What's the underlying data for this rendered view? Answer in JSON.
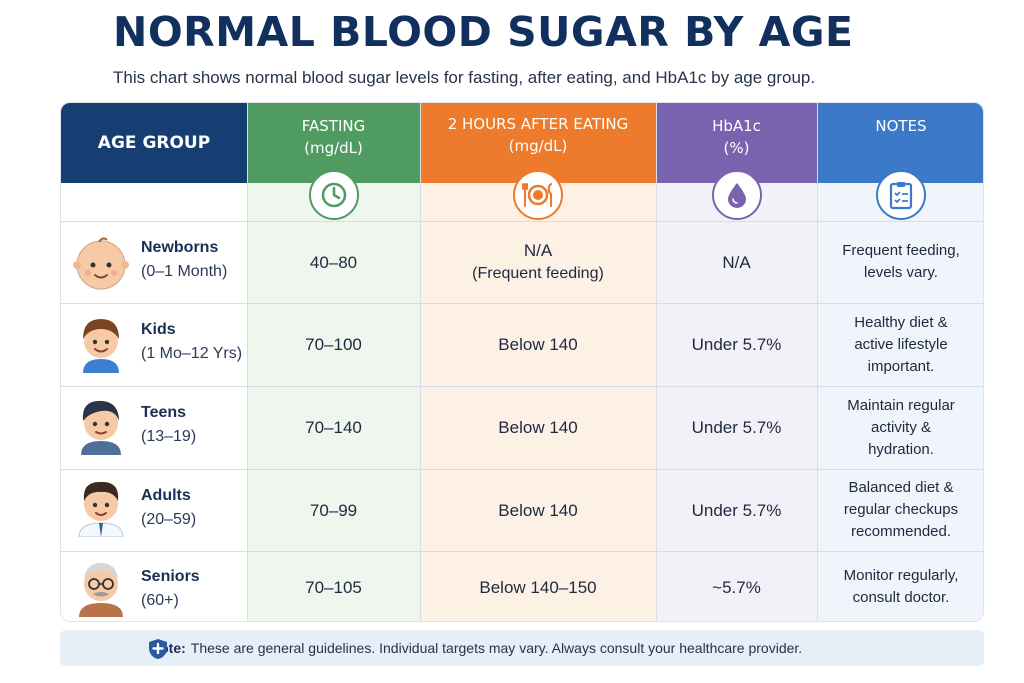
{
  "title": "NORMAL BLOOD SUGAR BY AGE",
  "subtitle": "This chart shows normal blood sugar levels for fasting, after eating, and HbA1c by age group.",
  "headers": {
    "age_group": "AGE GROUP",
    "fasting": "FASTING",
    "fasting_unit": "(mg/dL)",
    "after_eating": "2 HOURS AFTER EATING",
    "after_eating_unit": "(mg/dL)",
    "hba1c": "HbA1c",
    "hba1c_unit": "(%)",
    "notes": "NOTES"
  },
  "icons": [
    "clock-icon",
    "plate-icon",
    "drop-icon",
    "clipboard-icon"
  ],
  "colors": {
    "age_header": "#173e72",
    "fasting_header": "#4f9b61",
    "after_eating_header": "#ee7a2b",
    "hba1c_header": "#7a63ae",
    "notes_header": "#3c79c8"
  },
  "rows": [
    {
      "name": "Newborns",
      "range": "(0–1 Month)",
      "fasting": "40–80",
      "after_eating": "N/A",
      "after_eating_sub": "(Frequent feeding)",
      "hba1c": "N/A",
      "notes": [
        "Frequent feeding,",
        "levels vary."
      ]
    },
    {
      "name": "Kids",
      "range": "(1 Mo–12 Yrs)",
      "fasting": "70–100",
      "after_eating": "Below 140",
      "after_eating_sub": "",
      "hba1c": "Under 5.7%",
      "notes": [
        "Healthy diet &",
        "active lifestyle",
        "important."
      ]
    },
    {
      "name": "Teens",
      "range": "(13–19)",
      "fasting": "70–140",
      "after_eating": "Below 140",
      "after_eating_sub": "",
      "hba1c": "Under 5.7%",
      "notes": [
        "Maintain regular",
        "activity &",
        "hydration."
      ]
    },
    {
      "name": "Adults",
      "range": "(20–59)",
      "fasting": "70–99",
      "after_eating": "Below 140",
      "after_eating_sub": "",
      "hba1c": "Under 5.7%",
      "notes": [
        "Balanced diet &",
        "regular checkups",
        "recommended."
      ]
    },
    {
      "name": "Seniors",
      "range": "(60+)",
      "fasting": "70–105",
      "after_eating": "Below 140–150",
      "after_eating_sub": "",
      "hba1c": "~5.7%",
      "notes": [
        "Monitor regularly,",
        "consult doctor."
      ]
    }
  ],
  "footer": {
    "label": "Note:",
    "text": "These are general guidelines. Individual targets may vary. Always consult your healthcare provider."
  }
}
